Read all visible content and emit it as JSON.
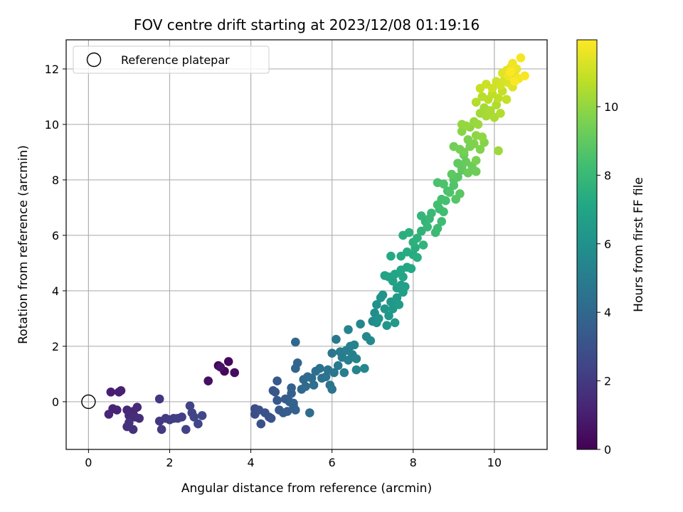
{
  "chart_data": {
    "type": "scatter",
    "title": "FOV centre drift starting at 2023/12/08 01:19:16",
    "xlabel": "Angular distance from reference (arcmin)",
    "ylabel": "Rotation from reference (arcmin)",
    "xlim": [
      -0.55,
      11.3
    ],
    "ylim": [
      -1.72,
      13.05
    ],
    "xticks": [
      "0",
      "2",
      "4",
      "6",
      "8",
      "10"
    ],
    "yticks": [
      "0",
      "2",
      "4",
      "6",
      "8",
      "10",
      "12"
    ],
    "grid": true,
    "legend": {
      "location": "upper-left",
      "entries": [
        {
          "label": "Reference platepar",
          "marker": "hollow-circle",
          "color": "#000000"
        }
      ]
    },
    "reference_point": {
      "x": 0,
      "y": 0
    },
    "colorbar": {
      "label": "Hours from first FF file",
      "min": 0,
      "max": 11.95,
      "ticks": [
        "0",
        "2",
        "4",
        "6",
        "8",
        "10"
      ],
      "colormap": "viridis"
    },
    "series": [
      {
        "color_by": "hours",
        "points": [
          [
            3.2,
            1.3,
            0.1
          ],
          [
            3.35,
            1.1,
            0.2
          ],
          [
            3.45,
            1.45,
            0.3
          ],
          [
            3.6,
            1.05,
            0.4
          ],
          [
            2.95,
            0.75,
            0.5
          ],
          [
            3.25,
            1.25,
            0.6
          ],
          [
            0.55,
            0.35,
            1.0
          ],
          [
            0.75,
            0.35,
            1.05
          ],
          [
            0.8,
            0.4,
            1.1
          ],
          [
            0.6,
            -0.25,
            1.15
          ],
          [
            0.7,
            -0.3,
            1.2
          ],
          [
            0.5,
            -0.45,
            1.25
          ],
          [
            0.95,
            -0.3,
            1.3
          ],
          [
            1.1,
            -0.35,
            1.35
          ],
          [
            1.2,
            -0.2,
            1.4
          ],
          [
            1.0,
            -0.5,
            1.45
          ],
          [
            1.15,
            -0.55,
            1.5
          ],
          [
            1.25,
            -0.6,
            1.55
          ],
          [
            0.95,
            -0.9,
            1.6
          ],
          [
            1.1,
            -1.0,
            1.65
          ],
          [
            1.0,
            -0.75,
            1.7
          ],
          [
            1.75,
            0.1,
            1.9
          ],
          [
            1.75,
            -0.7,
            1.95
          ],
          [
            1.8,
            -1.0,
            2.0
          ],
          [
            1.9,
            -0.6,
            2.05
          ],
          [
            2.0,
            -0.65,
            2.1
          ],
          [
            2.1,
            -0.6,
            2.15
          ],
          [
            2.2,
            -0.6,
            2.2
          ],
          [
            2.3,
            -0.55,
            2.25
          ],
          [
            2.4,
            -1.0,
            2.3
          ],
          [
            2.5,
            -0.15,
            2.35
          ],
          [
            2.55,
            -0.4,
            2.4
          ],
          [
            2.6,
            -0.55,
            2.45
          ],
          [
            2.7,
            -0.8,
            2.5
          ],
          [
            2.8,
            -0.5,
            2.55
          ],
          [
            4.1,
            -0.25,
            2.8
          ],
          [
            4.1,
            -0.45,
            2.85
          ],
          [
            4.2,
            -0.3,
            2.9
          ],
          [
            4.25,
            -0.8,
            2.95
          ],
          [
            4.35,
            -0.4,
            3.0
          ],
          [
            4.45,
            -0.55,
            3.05
          ],
          [
            4.5,
            -0.6,
            3.1
          ],
          [
            4.55,
            0.4,
            3.15
          ],
          [
            4.6,
            0.35,
            3.2
          ],
          [
            4.65,
            0.05,
            3.25
          ],
          [
            4.65,
            0.75,
            3.3
          ],
          [
            4.7,
            -0.3,
            3.35
          ],
          [
            4.8,
            -0.4,
            3.4
          ],
          [
            4.85,
            0.1,
            3.45
          ],
          [
            4.9,
            -0.35,
            3.5
          ],
          [
            4.95,
            0.0,
            3.55
          ],
          [
            5.0,
            0.3,
            3.6
          ],
          [
            5.0,
            0.5,
            3.65
          ],
          [
            5.05,
            -0.15,
            3.7
          ],
          [
            5.1,
            -0.3,
            3.75
          ],
          [
            5.05,
            -0.05,
            3.8
          ],
          [
            5.1,
            1.2,
            3.85
          ],
          [
            5.15,
            1.4,
            3.9
          ],
          [
            5.1,
            2.15,
            3.95
          ],
          [
            5.25,
            0.45,
            4.0
          ],
          [
            5.3,
            0.8,
            4.05
          ],
          [
            5.35,
            0.55,
            4.1
          ],
          [
            5.4,
            0.9,
            4.15
          ],
          [
            5.45,
            -0.4,
            4.2
          ],
          [
            5.5,
            0.85,
            4.25
          ],
          [
            5.55,
            0.6,
            4.3
          ],
          [
            5.6,
            1.1,
            4.35
          ],
          [
            5.7,
            1.2,
            4.4
          ],
          [
            5.75,
            0.85,
            4.45
          ],
          [
            5.85,
            0.9,
            4.5
          ],
          [
            5.9,
            1.15,
            4.55
          ],
          [
            5.95,
            0.6,
            4.6
          ],
          [
            6.0,
            0.45,
            4.65
          ],
          [
            6.0,
            1.75,
            4.7
          ],
          [
            6.05,
            1.05,
            4.75
          ],
          [
            6.1,
            2.25,
            4.8
          ],
          [
            6.15,
            1.3,
            4.85
          ],
          [
            6.2,
            1.8,
            4.9
          ],
          [
            6.25,
            1.6,
            4.95
          ],
          [
            6.3,
            1.05,
            5.0
          ],
          [
            6.35,
            1.85,
            5.05
          ],
          [
            6.4,
            1.5,
            5.1
          ],
          [
            6.45,
            2.0,
            5.15
          ],
          [
            6.5,
            1.7,
            5.2
          ],
          [
            6.55,
            2.05,
            5.25
          ],
          [
            6.6,
            1.55,
            5.3
          ],
          [
            6.6,
            1.15,
            5.35
          ],
          [
            6.4,
            2.6,
            5.4
          ],
          [
            6.7,
            2.8,
            5.45
          ],
          [
            6.8,
            1.2,
            5.5
          ],
          [
            6.85,
            2.35,
            5.55
          ],
          [
            6.95,
            2.2,
            5.6
          ],
          [
            7.0,
            2.9,
            5.7
          ],
          [
            7.05,
            3.2,
            5.8
          ],
          [
            7.1,
            2.85,
            5.9
          ],
          [
            7.1,
            3.5,
            6.0
          ],
          [
            7.15,
            3.0,
            6.05
          ],
          [
            7.2,
            3.75,
            6.1
          ],
          [
            7.25,
            3.85,
            6.15
          ],
          [
            7.3,
            3.35,
            6.2
          ],
          [
            7.35,
            2.75,
            6.25
          ],
          [
            7.4,
            3.1,
            6.3
          ],
          [
            7.45,
            3.6,
            6.35
          ],
          [
            7.5,
            3.35,
            6.4
          ],
          [
            7.55,
            2.85,
            6.45
          ],
          [
            7.6,
            3.75,
            6.5
          ],
          [
            7.65,
            3.5,
            6.55
          ],
          [
            7.7,
            4.2,
            6.6
          ],
          [
            7.75,
            3.95,
            6.65
          ],
          [
            7.8,
            4.15,
            6.7
          ],
          [
            7.6,
            4.1,
            6.75
          ],
          [
            7.5,
            4.35,
            6.8
          ],
          [
            7.3,
            4.55,
            6.85
          ],
          [
            7.4,
            4.5,
            6.9
          ],
          [
            7.55,
            4.6,
            6.95
          ],
          [
            7.75,
            4.5,
            7.0
          ],
          [
            7.7,
            4.75,
            7.05
          ],
          [
            7.85,
            4.85,
            7.1
          ],
          [
            7.95,
            4.8,
            7.15
          ],
          [
            7.45,
            5.25,
            7.2
          ],
          [
            7.7,
            5.25,
            7.25
          ],
          [
            7.85,
            5.4,
            7.3
          ],
          [
            8.0,
            5.3,
            7.35
          ],
          [
            8.05,
            5.55,
            7.4
          ],
          [
            8.1,
            5.2,
            7.45
          ],
          [
            7.75,
            6.0,
            7.5
          ],
          [
            7.9,
            6.1,
            7.55
          ],
          [
            8.0,
            5.75,
            7.6
          ],
          [
            8.1,
            5.9,
            7.65
          ],
          [
            8.2,
            6.15,
            7.7
          ],
          [
            8.25,
            5.65,
            7.75
          ],
          [
            8.3,
            6.5,
            7.8
          ],
          [
            8.2,
            6.7,
            7.85
          ],
          [
            8.35,
            6.3,
            7.9
          ],
          [
            8.4,
            6.6,
            7.95
          ],
          [
            8.45,
            6.8,
            8.0
          ],
          [
            8.55,
            6.1,
            8.05
          ],
          [
            8.6,
            6.25,
            8.1
          ],
          [
            8.65,
            6.95,
            8.15
          ],
          [
            8.7,
            6.5,
            8.2
          ],
          [
            8.75,
            6.85,
            8.25
          ],
          [
            8.6,
            7.1,
            8.3
          ],
          [
            8.7,
            7.3,
            8.35
          ],
          [
            8.8,
            7.25,
            8.4
          ],
          [
            8.85,
            7.6,
            8.45
          ],
          [
            8.6,
            7.9,
            8.5
          ],
          [
            8.75,
            7.85,
            8.55
          ],
          [
            8.9,
            7.55,
            8.6
          ],
          [
            9.0,
            7.8,
            8.65
          ],
          [
            9.0,
            8.0,
            8.7
          ],
          [
            9.05,
            7.3,
            8.75
          ],
          [
            9.1,
            8.1,
            8.8
          ],
          [
            9.15,
            7.5,
            8.85
          ],
          [
            9.2,
            8.35,
            8.9
          ],
          [
            8.95,
            8.2,
            8.95
          ],
          [
            9.1,
            8.6,
            9.0
          ],
          [
            9.2,
            8.45,
            9.05
          ],
          [
            9.25,
            8.9,
            9.1
          ],
          [
            9.3,
            8.65,
            9.15
          ],
          [
            9.35,
            8.25,
            9.2
          ],
          [
            9.45,
            8.5,
            9.25
          ],
          [
            9.55,
            8.3,
            9.3
          ],
          [
            9.0,
            9.2,
            9.35
          ],
          [
            9.15,
            9.1,
            9.4
          ],
          [
            9.25,
            9.0,
            9.45
          ],
          [
            9.4,
            9.2,
            9.5
          ],
          [
            9.55,
            8.7,
            9.55
          ],
          [
            9.35,
            9.45,
            9.6
          ],
          [
            9.5,
            9.3,
            9.65
          ],
          [
            9.65,
            9.1,
            9.7
          ],
          [
            9.75,
            9.35,
            9.75
          ],
          [
            9.2,
            9.75,
            9.8
          ],
          [
            9.4,
            9.9,
            9.85
          ],
          [
            9.55,
            9.6,
            9.9
          ],
          [
            9.7,
            9.55,
            9.95
          ],
          [
            9.2,
            10.0,
            10.0
          ],
          [
            9.3,
            9.95,
            10.05
          ],
          [
            9.5,
            10.1,
            10.1
          ],
          [
            9.6,
            10.0,
            10.15
          ],
          [
            10.1,
            9.05,
            10.2
          ],
          [
            9.65,
            10.4,
            10.25
          ],
          [
            9.75,
            10.6,
            10.3
          ],
          [
            9.8,
            10.3,
            10.35
          ],
          [
            9.9,
            10.5,
            10.4
          ],
          [
            10.0,
            10.25,
            10.45
          ],
          [
            10.05,
            10.7,
            10.5
          ],
          [
            10.15,
            10.4,
            10.55
          ],
          [
            9.55,
            10.8,
            10.6
          ],
          [
            9.7,
            11.0,
            10.65
          ],
          [
            9.85,
            10.9,
            10.7
          ],
          [
            9.95,
            11.1,
            10.75
          ],
          [
            10.1,
            10.95,
            10.8
          ],
          [
            10.2,
            11.2,
            10.85
          ],
          [
            10.3,
            10.9,
            10.9
          ],
          [
            9.65,
            11.3,
            10.95
          ],
          [
            9.8,
            11.45,
            11.0
          ],
          [
            9.95,
            11.3,
            11.05
          ],
          [
            10.05,
            11.55,
            11.1
          ],
          [
            10.15,
            11.4,
            11.15
          ],
          [
            10.25,
            11.6,
            11.2
          ],
          [
            10.35,
            11.5,
            11.25
          ],
          [
            10.4,
            11.7,
            11.3
          ],
          [
            10.45,
            11.35,
            11.35
          ],
          [
            10.2,
            11.85,
            11.4
          ],
          [
            10.3,
            11.95,
            11.45
          ],
          [
            10.4,
            12.05,
            11.5
          ],
          [
            10.5,
            11.8,
            11.55
          ],
          [
            10.55,
            12.0,
            11.6
          ],
          [
            10.35,
            11.75,
            11.65
          ],
          [
            10.45,
            12.2,
            11.7
          ],
          [
            10.6,
            11.65,
            11.75
          ],
          [
            10.65,
            12.4,
            11.8
          ],
          [
            10.75,
            11.75,
            11.85
          ],
          [
            10.5,
            11.55,
            11.9
          ],
          [
            10.4,
            11.9,
            11.95
          ]
        ]
      }
    ]
  }
}
